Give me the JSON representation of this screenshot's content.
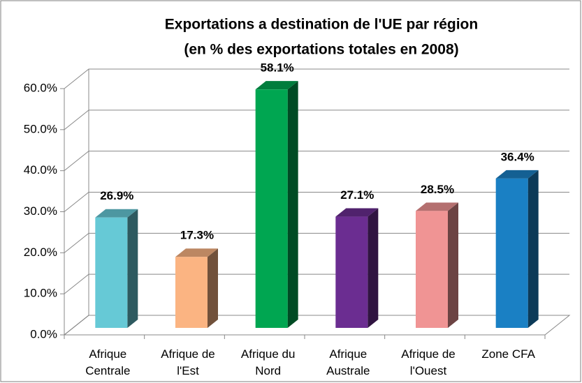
{
  "chart_data": {
    "type": "bar3d",
    "title": "Exportations a destination de l'UE par région",
    "subtitle": "(en % des exportations totales en 2008)",
    "categories": [
      "Afrique Centrale",
      "Afrique de l'Est",
      "Afrique du Nord",
      "Afrique Australe",
      "Afrique de l'Ouest",
      "Zone CFA"
    ],
    "values": [
      26.9,
      17.3,
      58.1,
      27.1,
      28.5,
      36.4
    ],
    "value_labels": [
      "26.9%",
      "17.3%",
      "58.1%",
      "27.1%",
      "28.5%",
      "36.4%"
    ],
    "colors": [
      "#66c9d6",
      "#fbb482",
      "#00a651",
      "#6b2d91",
      "#f09494",
      "#1a80c4"
    ],
    "ylim": [
      0,
      60
    ],
    "yticks": [
      {
        "value": 0,
        "label": "0.0%"
      },
      {
        "value": 10,
        "label": "10.0%"
      },
      {
        "value": 20,
        "label": "20.0%"
      },
      {
        "value": 30,
        "label": "30.0%"
      },
      {
        "value": 40,
        "label": "40.0%"
      },
      {
        "value": 50,
        "label": "50.0%"
      },
      {
        "value": 60,
        "label": "60.0%"
      }
    ],
    "grid": true
  }
}
